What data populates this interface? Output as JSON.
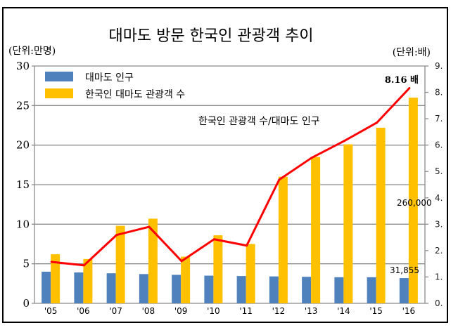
{
  "chart_data": {
    "type": "bar",
    "title": "대마도 방문 한국인 관광객 추이",
    "ylabel": "(단위:만명)",
    "y2label": "(단위:배)",
    "categories": [
      "'05",
      "'06",
      "'07",
      "'08",
      "'09",
      "'10",
      "'11",
      "'12",
      "'13",
      "'14",
      "'15",
      "'16"
    ],
    "ylim": [
      0,
      30
    ],
    "yticks": [
      "0",
      "5",
      "10",
      "15",
      "20",
      "25",
      "30"
    ],
    "y2lim": [
      0,
      9
    ],
    "y2ticks": [
      "0.",
      "1.",
      "2.",
      "3.",
      "4.",
      "5.",
      "6.",
      "7.",
      "8.",
      "9."
    ],
    "grid": true,
    "legend_position": "top-left",
    "series": [
      {
        "name": "대마도 인구",
        "type": "bar",
        "axis": "left",
        "color": "#4F81BD",
        "values": [
          4.0,
          3.9,
          3.8,
          3.7,
          3.6,
          3.5,
          3.45,
          3.4,
          3.35,
          3.3,
          3.3,
          3.19
        ]
      },
      {
        "name": "한국인 대마도 관광객 수",
        "type": "bar",
        "axis": "left",
        "color": "#FFC000",
        "values": [
          6.2,
          5.6,
          9.8,
          10.7,
          5.9,
          8.6,
          7.5,
          16.0,
          18.5,
          20.1,
          22.2,
          26.0
        ]
      },
      {
        "name": "한국인 관광객 수/대마도 인구",
        "type": "line",
        "axis": "right",
        "color": "#FF0000",
        "values": [
          1.57,
          1.44,
          2.59,
          2.9,
          1.6,
          2.43,
          2.19,
          4.69,
          5.52,
          6.16,
          6.85,
          8.16
        ]
      }
    ],
    "annotations": {
      "line_label": "한국인 관광객 수/대마도 인구",
      "last_ratio": "8.16 배",
      "last_tourists": "260,000",
      "last_population": "31,855"
    }
  }
}
